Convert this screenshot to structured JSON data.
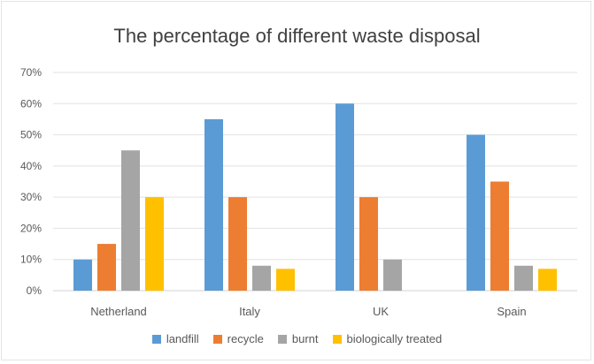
{
  "chart_data": {
    "type": "bar",
    "title": "The percentage of different waste disposal",
    "xlabel": "",
    "ylabel": "",
    "categories": [
      "Netherland",
      "Italy",
      "UK",
      "Spain"
    ],
    "series": [
      {
        "name": "landfill",
        "color": "#5b9bd5",
        "values": [
          10,
          55,
          60,
          50
        ]
      },
      {
        "name": "recycle",
        "color": "#ed7d31",
        "values": [
          15,
          30,
          30,
          35
        ]
      },
      {
        "name": "burnt",
        "color": "#a5a5a5",
        "values": [
          45,
          8,
          10,
          8
        ]
      },
      {
        "name": "biologically treated",
        "color": "#ffc000",
        "values": [
          30,
          7,
          0,
          7
        ]
      }
    ],
    "ylim": [
      0,
      70
    ],
    "yticks": [
      "0%",
      "10%",
      "20%",
      "30%",
      "40%",
      "50%",
      "60%",
      "70%"
    ],
    "grid": true,
    "legend_position": "bottom"
  }
}
